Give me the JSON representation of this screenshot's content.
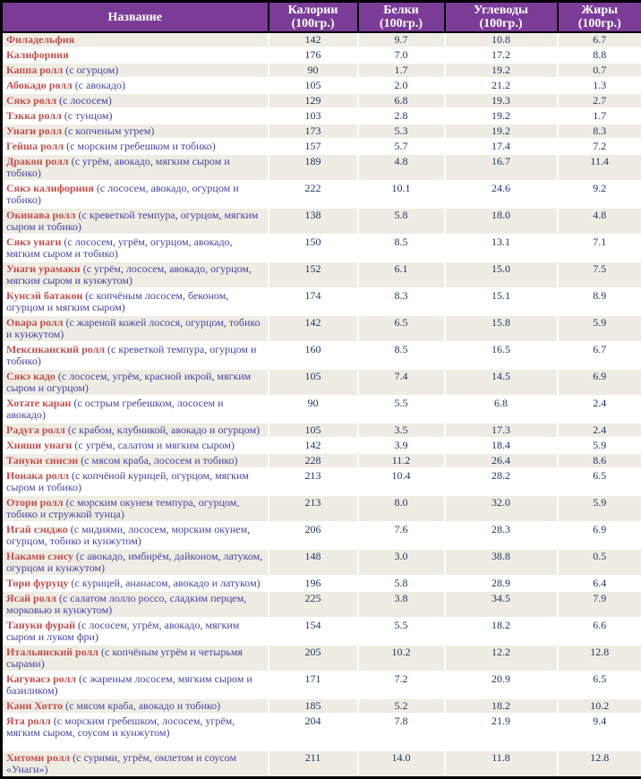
{
  "table": {
    "columns": [
      {
        "label": "Название",
        "sub": ""
      },
      {
        "label": "Калории",
        "sub": "(100гр.)"
      },
      {
        "label": "Белки",
        "sub": "(100гр.)"
      },
      {
        "label": "Углеводы",
        "sub": "(100гр.)"
      },
      {
        "label": "Жиры",
        "sub": "(100гр.)"
      }
    ],
    "rows": [
      {
        "name": "Филадельфия",
        "desc": "",
        "kcal": "142",
        "protein": "9.7",
        "carbs": "10.8",
        "fat": "6.7"
      },
      {
        "name": "Калифорния",
        "desc": "",
        "kcal": "176",
        "protein": "7.0",
        "carbs": "17.2",
        "fat": "8.8"
      },
      {
        "name": "Каппа ролл",
        "desc": "(с огурцом)",
        "kcal": "90",
        "protein": "1.7",
        "carbs": "19.2",
        "fat": "0.7"
      },
      {
        "name": "Абокадо ролл",
        "desc": "(с авокадо)",
        "kcal": "105",
        "protein": "2.0",
        "carbs": "21.2",
        "fat": "1.3"
      },
      {
        "name": "Сякэ ролл",
        "desc": "(с лососем)",
        "kcal": "129",
        "protein": "6.8",
        "carbs": "19.3",
        "fat": "2.7"
      },
      {
        "name": "Тэкка ролл",
        "desc": "(с тунцом)",
        "kcal": "103",
        "protein": "2.8",
        "carbs": "19.2",
        "fat": "1.7"
      },
      {
        "name": "Унаги ролл",
        "desc": "(с копченым угрем)",
        "kcal": "173",
        "protein": "5.3",
        "carbs": "19.2",
        "fat": "8.3"
      },
      {
        "name": "Гейша ролл",
        "desc": "(с морским гребешком и тобико)",
        "kcal": "157",
        "protein": "5.7",
        "carbs": "17.4",
        "fat": "7.2"
      },
      {
        "name": "Дракон ролл",
        "desc": "(с угрём, авокадо, мягким сыром и тобико)",
        "kcal": "189",
        "protein": "4.8",
        "carbs": "16.7",
        "fat": "11.4"
      },
      {
        "name": "Сякэ калифорния",
        "desc": "(с лососем, авокадо, огурцом и тобико)",
        "kcal": "222",
        "protein": "10.1",
        "carbs": "24.6",
        "fat": "9.2"
      },
      {
        "name": "Окинава ролл",
        "desc": "(с креветкой темпура, огурцом, мягким сыром и тобико)",
        "kcal": "138",
        "protein": "5.8",
        "carbs": "18.0",
        "fat": "4.8"
      },
      {
        "name": "Сякэ унаги",
        "desc": "(с лососем, угрём, огурцом, авокадо, мягким сыром и тобико)",
        "kcal": "150",
        "protein": "8.5",
        "carbs": "13.1",
        "fat": "7.1"
      },
      {
        "name": "Унаги урамаки",
        "desc": "(с угрём, лососем, авокадо, огурцом, мягким сыром и кунжутом)",
        "kcal": "152",
        "protein": "6.1",
        "carbs": "15.0",
        "fat": "7.5"
      },
      {
        "name": "Кунсэй батакон",
        "desc": "(с копчёным лососем, беконом, огурцом и мягким сыром)",
        "kcal": "174",
        "protein": "8.3",
        "carbs": "15.1",
        "fat": "8.9"
      },
      {
        "name": "Овара ролл",
        "desc": "(с жареной кожей лосося, огурцом, тобико и кунжутом)",
        "kcal": "142",
        "protein": "6.5",
        "carbs": "15.8",
        "fat": "5.9"
      },
      {
        "name": "Мексиканский ролл",
        "desc": "(с креветкой темпура, огурцом и тобико)",
        "kcal": "160",
        "protein": "8.5",
        "carbs": "16.5",
        "fat": "6.7"
      },
      {
        "name": "Сякэ кадо",
        "desc": "(с лососем, угрём, красной икрой, мягким сыром и огурцом)",
        "kcal": "105",
        "protein": "7.4",
        "carbs": "14.5",
        "fat": "6.9"
      },
      {
        "name": "Хотате каран",
        "desc": "(с острым гребешком, лососем и авокадо)",
        "kcal": "90",
        "protein": "5.5",
        "carbs": "6.8",
        "fat": "2.4"
      },
      {
        "name": "Радуга ролл",
        "desc": "(с крабом, клубникой, авокадо и огурцом)",
        "kcal": "105",
        "protein": "3.5",
        "carbs": "17.3",
        "fat": "2.4"
      },
      {
        "name": "Хияши унаги",
        "desc": "(с угрём, салатом и мягким сыром)",
        "kcal": "142",
        "protein": "3.9",
        "carbs": "18.4",
        "fat": "5.9"
      },
      {
        "name": "Тануки синсэн",
        "desc": "(с мясом краба, лососем и тобико)",
        "kcal": "228",
        "protein": "11.2",
        "carbs": "26.4",
        "fat": "8.6"
      },
      {
        "name": "Ионака ролл",
        "desc": "(с копчёной курицей, огурцом, мягким сыром и тобико)",
        "kcal": "213",
        "protein": "10.4",
        "carbs": "28.2",
        "fat": "6.5"
      },
      {
        "name": "Отори ролл",
        "desc": "(с морским окунем темпура, огурцом, тобико и стружкой тунца)",
        "kcal": "213",
        "protein": "8.0",
        "carbs": "32.0",
        "fat": "5.9"
      },
      {
        "name": "Игай сэнджо",
        "desc": "(с мидиями, лососем, морским окунем, огурцом, тобико и кунжутом)",
        "kcal": "206",
        "protein": "7.6",
        "carbs": "28.3",
        "fat": "6.9"
      },
      {
        "name": "Наками сэнсу",
        "desc": "(с авокадо, имбирём, дайконом, латуком, огурцом и кунжутом)",
        "kcal": "148",
        "protein": "3.0",
        "carbs": "38.8",
        "fat": "0.5"
      },
      {
        "name": "Тори фуруцу",
        "desc": "(с курицей, ананасом, авокадо и латуком)",
        "kcal": "196",
        "protein": "5.8",
        "carbs": "28.9",
        "fat": "6.4"
      },
      {
        "name": "Ясай ролл",
        "desc": "(с салатом лолло россо, сладким перцем, морковью и кунжутом)",
        "kcal": "225",
        "protein": "3.8",
        "carbs": "34.5",
        "fat": "7.9"
      },
      {
        "name": "Тануки фурай",
        "desc": "(с лососем, угрём, авокадо, мягким сыром и луком фри)",
        "kcal": "154",
        "protein": "5.5",
        "carbs": "18.2",
        "fat": "6.6"
      },
      {
        "name": "Итальянский ролл",
        "desc": "(с копчёным угрём и четырьмя сырами)",
        "kcal": "205",
        "protein": "10.2",
        "carbs": "12.2",
        "fat": "12.8"
      },
      {
        "name": "Кагувасэ ролл",
        "desc": "(с жареным лососем, мягким сыром и базиликом)",
        "kcal": "171",
        "protein": "7.2",
        "carbs": "20.9",
        "fat": "6.5"
      },
      {
        "name": "Кани Хотто",
        "desc": "(с мясом краба, авокадо и тобико)",
        "kcal": "185",
        "protein": "5.2",
        "carbs": "18.2",
        "fat": "10.2"
      },
      {
        "name": "Ята ролл",
        "desc": "(с морским гребешком, лососем, угрём, мягким сыром, соусом и кунжутом)",
        "kcal": "204",
        "protein": "7.8",
        "carbs": "21.9",
        "fat": "9.4",
        "tall": true
      },
      {
        "name": "Хитоми ролл",
        "desc": "(с сурими, угрём, омлетом и соусом «Унаги»)",
        "kcal": "211",
        "protein": "14.0",
        "carbs": "11.8",
        "fat": "12.8"
      }
    ]
  },
  "colors": {
    "header_bg": "#7B3C97",
    "header_text": "#FFFFFF",
    "stripe_beige": "#EFECE3",
    "stripe_white": "#FFFFFF",
    "name_red": "#C0504D",
    "desc_blue": "#4545A0",
    "value_navy": "#1F3864",
    "border_black": "#000000"
  }
}
